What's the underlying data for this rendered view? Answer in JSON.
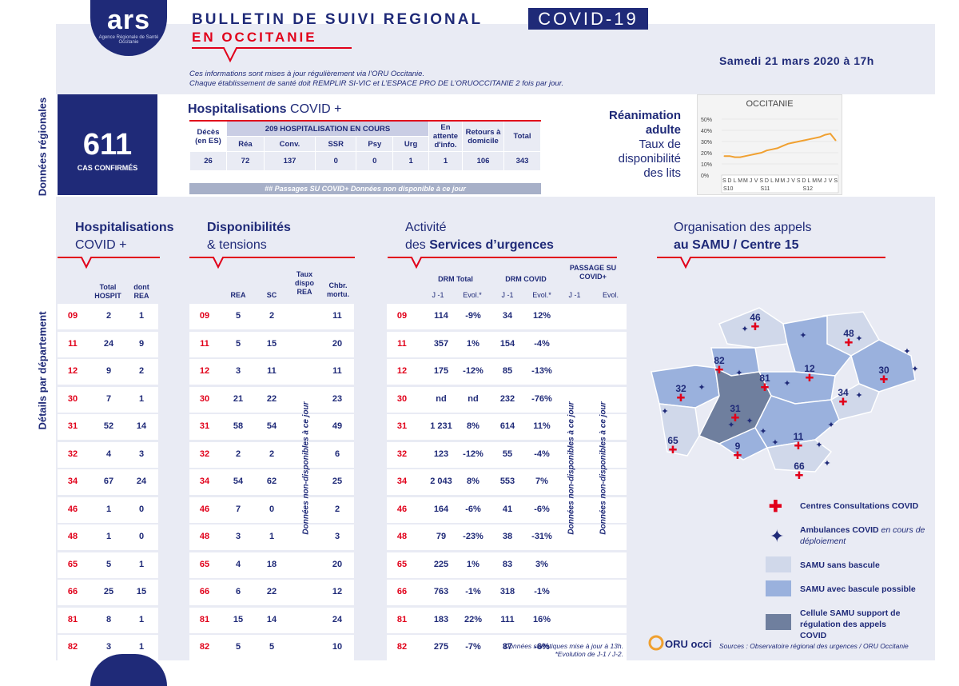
{
  "header": {
    "logo": "ars",
    "logo_sub": "Agence Régionale de Santé Occitanie",
    "title_a": "BULLETIN DE ",
    "title_b": "SUIVI REGIONAL",
    "title_line2": "EN OCCITANIE",
    "badge": "COVID-19",
    "date": "Samedi 21 mars 2020 à 17h",
    "info1": "Ces informations sont mises à jour régulièrement via l’ORU Occitanie.",
    "info2": "Chaque établissement de santé doit REMPLIR SI-VIC et L’ESPACE PRO DE L’ORUOCCITANIE 2 fois par jour."
  },
  "side": {
    "regional": "Données régionales",
    "dept": "Détails par département"
  },
  "cases": {
    "value": "611",
    "label": "CAS CONFIRMÉS"
  },
  "hosp_summary": {
    "title_a": "Hospitalisations",
    "title_b": " COVID +",
    "group": "209 HOSPITALISATION EN COURS",
    "cols": [
      "Décès (en ES)",
      "Réa",
      "Conv.",
      "SSR",
      "Psy",
      "Urg",
      "En attente d'info.",
      "Retours à domicile",
      "Total"
    ],
    "values": [
      "26",
      "72",
      "137",
      "0",
      "0",
      "1",
      "1",
      "106",
      "343"
    ],
    "passages": "## Passages SU COVID+      Données non disponible à ce jour"
  },
  "rea": {
    "l1": "Réanimation",
    "l2": "adulte",
    "l3": "Taux de",
    "l4": "disponibilité",
    "l5": "des lits"
  },
  "chart_data": {
    "type": "line",
    "title": "OCCITANIE",
    "yticks": [
      "50%",
      "40%",
      "30%",
      "20%",
      "10%",
      "0%"
    ],
    "ylim": [
      0,
      50
    ],
    "x": [
      "S",
      "D",
      "L",
      "M",
      "M",
      "J",
      "V",
      "S",
      "D",
      "L",
      "M",
      "M",
      "J",
      "V",
      "S",
      "D",
      "L",
      "M",
      "M",
      "J",
      "V",
      "S"
    ],
    "weeks": [
      "S10",
      "S11",
      "S12"
    ],
    "values": [
      17,
      17,
      16,
      16,
      17,
      18,
      19,
      20,
      22,
      23,
      24,
      26,
      28,
      29,
      30,
      31,
      32,
      33,
      34,
      36,
      37,
      31
    ],
    "color": "#f0a030"
  },
  "sections": {
    "hosp_a": "Hospitalisations",
    "hosp_b": "COVID +",
    "dispo_a": "Disponibilités",
    "dispo_b": "& tensions",
    "urg_a": "Activité",
    "urg_b": "des ",
    "urg_c": "Services d’urgences",
    "samu_a": "Organisation des appels",
    "samu_b": "au SAMU / Centre 15"
  },
  "cols": {
    "total_hospit": "Total HOSPIT",
    "dont_rea": "dont REA",
    "rea": "REA",
    "sc": "SC",
    "taux": "Taux dispo REA",
    "chbr": "Chbr. mortu.",
    "drm_total": "DRM Total",
    "drm_covid": "DRM COVID",
    "passage": "PASSAGE SU COVID+",
    "j1": "J -1",
    "evol": "Evol.*",
    "j1b": "J -1",
    "evolb": "Evol.*",
    "j1c": "J -1",
    "evolc": "Evol."
  },
  "dept_rows": [
    {
      "d": "09",
      "th": "2",
      "dr": "1",
      "rea": "5",
      "sc": "2",
      "ch": "11",
      "dt": "114",
      "dte": "-9%",
      "dc": "34",
      "dce": "12%"
    },
    {
      "d": "11",
      "th": "24",
      "dr": "9",
      "rea": "5",
      "sc": "15",
      "ch": "20",
      "dt": "357",
      "dte": "1%",
      "dc": "154",
      "dce": "-4%"
    },
    {
      "d": "12",
      "th": "9",
      "dr": "2",
      "rea": "3",
      "sc": "11",
      "ch": "11",
      "dt": "175",
      "dte": "-12%",
      "dc": "85",
      "dce": "-13%"
    },
    {
      "d": "30",
      "th": "7",
      "dr": "1",
      "rea": "21",
      "sc": "22",
      "ch": "23",
      "dt": "nd",
      "dte": "nd",
      "dc": "232",
      "dce": "-76%"
    },
    {
      "d": "31",
      "th": "52",
      "dr": "14",
      "rea": "58",
      "sc": "54",
      "ch": "49",
      "dt": "1 231",
      "dte": "8%",
      "dc": "614",
      "dce": "11%"
    },
    {
      "d": "32",
      "th": "4",
      "dr": "3",
      "rea": "2",
      "sc": "2",
      "ch": "6",
      "dt": "123",
      "dte": "-12%",
      "dc": "55",
      "dce": "-4%"
    },
    {
      "d": "34",
      "th": "67",
      "dr": "24",
      "rea": "54",
      "sc": "62",
      "ch": "25",
      "dt": "2 043",
      "dte": "8%",
      "dc": "553",
      "dce": "7%"
    },
    {
      "d": "46",
      "th": "1",
      "dr": "0",
      "rea": "7",
      "sc": "0",
      "ch": "2",
      "dt": "164",
      "dte": "-6%",
      "dc": "41",
      "dce": "-6%"
    },
    {
      "d": "48",
      "th": "1",
      "dr": "0",
      "rea": "3",
      "sc": "1",
      "ch": "3",
      "dt": "79",
      "dte": "-23%",
      "dc": "38",
      "dce": "-31%"
    },
    {
      "d": "65",
      "th": "5",
      "dr": "1",
      "rea": "4",
      "sc": "18",
      "ch": "20",
      "dt": "225",
      "dte": "1%",
      "dc": "83",
      "dce": "3%"
    },
    {
      "d": "66",
      "th": "25",
      "dr": "15",
      "rea": "6",
      "sc": "22",
      "ch": "12",
      "dt": "763",
      "dte": "-1%",
      "dc": "318",
      "dce": "-1%"
    },
    {
      "d": "81",
      "th": "8",
      "dr": "1",
      "rea": "15",
      "sc": "14",
      "ch": "24",
      "dt": "183",
      "dte": "22%",
      "dc": "111",
      "dce": "16%"
    },
    {
      "d": "82",
      "th": "3",
      "dr": "1",
      "rea": "5",
      "sc": "5",
      "ch": "10",
      "dt": "275",
      "dte": "-7%",
      "dc": "87",
      "dce": "-6%"
    }
  ],
  "notes": {
    "nd1": "Données non-disponibles à ce jour",
    "nd2": "Données non-disponibles à ce jour",
    "nd3": "Données non-disponibles à ce jour"
  },
  "map": {
    "labels": [
      "46",
      "48",
      "82",
      "12",
      "30",
      "32",
      "81",
      "34",
      "31",
      "65",
      "9",
      "11",
      "66"
    ]
  },
  "legend": {
    "centres": "Centres Consultations COVID",
    "amb_a": "Ambulances COVID",
    "amb_b": " en cours de déploiement",
    "sans": "SAMU sans bascule",
    "avec": "SAMU avec bascule possible",
    "cell": "Cellule SAMU support de régulation des appels COVID"
  },
  "footer": {
    "stats": "Données statistiques mise à jour à 13h.",
    "evol": "*Evolution de J-1 / J-2.",
    "sources": "Sources : Observatoire régional des urgences / ORU Occitanie",
    "oru": "ORU occitanie"
  }
}
